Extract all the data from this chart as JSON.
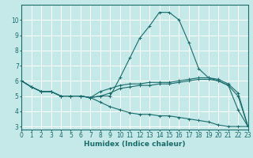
{
  "xlabel": "Humidex (Indice chaleur)",
  "xlim": [
    0,
    23
  ],
  "ylim": [
    2.8,
    11.0
  ],
  "background_color": "#c5e8e8",
  "grid_color": "#ffffff",
  "line_color": "#1a6b6b",
  "lines": [
    {
      "x": [
        0,
        1,
        2,
        3,
        4,
        5,
        6,
        7,
        8,
        9,
        10,
        11,
        12,
        13,
        14,
        15,
        16,
        17,
        18,
        19,
        20,
        21,
        22,
        23
      ],
      "y": [
        6.0,
        5.6,
        5.3,
        5.3,
        5.0,
        5.0,
        5.0,
        4.9,
        5.0,
        5.0,
        6.2,
        7.5,
        8.8,
        9.6,
        10.5,
        10.5,
        10.0,
        8.5,
        6.8,
        6.2,
        6.0,
        5.7,
        4.1,
        3.0
      ]
    },
    {
      "x": [
        0,
        1,
        2,
        3,
        4,
        5,
        6,
        7,
        8,
        9,
        10,
        11,
        12,
        13,
        14,
        15,
        16,
        17,
        18,
        19,
        20,
        21,
        22,
        23
      ],
      "y": [
        6.0,
        5.6,
        5.3,
        5.3,
        5.0,
        5.0,
        5.0,
        4.9,
        5.3,
        5.5,
        5.7,
        5.8,
        5.8,
        5.9,
        5.9,
        5.9,
        6.0,
        6.1,
        6.2,
        6.2,
        6.1,
        5.8,
        5.2,
        3.0
      ]
    },
    {
      "x": [
        0,
        1,
        2,
        3,
        4,
        5,
        6,
        7,
        8,
        9,
        10,
        11,
        12,
        13,
        14,
        15,
        16,
        17,
        18,
        19,
        20,
        21,
        22,
        23
      ],
      "y": [
        6.0,
        5.6,
        5.3,
        5.3,
        5.0,
        5.0,
        5.0,
        4.9,
        5.0,
        5.2,
        5.5,
        5.6,
        5.7,
        5.7,
        5.8,
        5.8,
        5.9,
        6.0,
        6.1,
        6.1,
        6.0,
        5.7,
        5.0,
        3.0
      ]
    },
    {
      "x": [
        0,
        1,
        2,
        3,
        4,
        5,
        6,
        7,
        8,
        9,
        10,
        11,
        12,
        13,
        14,
        15,
        16,
        17,
        18,
        19,
        20,
        21,
        22,
        23
      ],
      "y": [
        6.0,
        5.6,
        5.3,
        5.3,
        5.0,
        5.0,
        5.0,
        4.9,
        4.6,
        4.3,
        4.1,
        3.9,
        3.8,
        3.8,
        3.7,
        3.7,
        3.6,
        3.5,
        3.4,
        3.3,
        3.1,
        3.0,
        3.0,
        3.0
      ]
    }
  ],
  "xticks": [
    0,
    1,
    2,
    3,
    4,
    5,
    6,
    7,
    8,
    9,
    10,
    11,
    12,
    13,
    14,
    15,
    16,
    17,
    18,
    19,
    20,
    21,
    22,
    23
  ],
  "yticks": [
    3,
    4,
    5,
    6,
    7,
    8,
    9,
    10
  ],
  "tick_fontsize": 5.5,
  "label_fontsize": 6.5
}
